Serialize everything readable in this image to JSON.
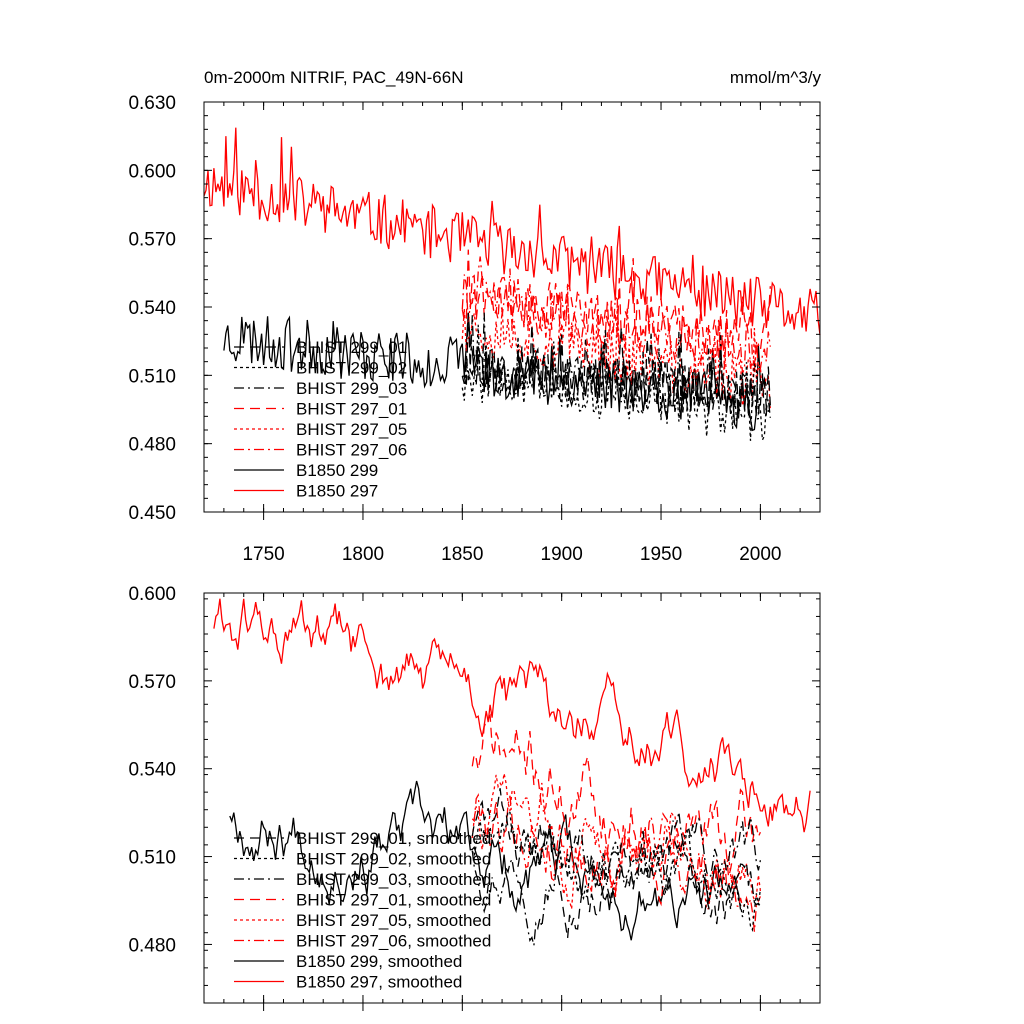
{
  "chart_data": [
    {
      "type": "line",
      "title": "0m-2000m NITRIF, PAC_49N-66N",
      "units": "mmol/m^3/y",
      "xlim": [
        1720,
        2030
      ],
      "ylim": [
        0.45,
        0.63
      ],
      "xticks": [
        1750,
        1800,
        1850,
        1900,
        1950,
        2000
      ],
      "yticks": [
        0.45,
        0.48,
        0.51,
        0.54,
        0.57,
        0.6,
        0.63
      ],
      "ytick_labels": [
        "0.450",
        "0.480",
        "0.510",
        "0.540",
        "0.570",
        "0.600",
        "0.630"
      ],
      "xtick_labels": [
        "1750",
        "1800",
        "1850",
        "1900",
        "1950",
        "2000"
      ],
      "legend": [
        "BHIST 299_01",
        "BHIST 299_02",
        "BHIST 299_03",
        "BHIST 297_01",
        "BHIST 297_05",
        "BHIST 297_06",
        "B1850 299",
        "B1850 297"
      ],
      "series": [
        {
          "name": "B1850 297",
          "color": "#ff0000",
          "dash": "solid",
          "years": [
            1720,
            2030
          ],
          "start": 0.595,
          "end": 0.535,
          "noise": 0.012,
          "seed": 11
        },
        {
          "name": "B1850 299",
          "color": "#000000",
          "dash": "solid",
          "years": [
            1730,
            2003
          ],
          "start": 0.527,
          "end": 0.497,
          "noise": 0.012,
          "seed": 23
        },
        {
          "name": "BHIST 297_01",
          "color": "#ff0000",
          "dash": "dash",
          "years": [
            1850,
            2005
          ],
          "start": 0.545,
          "end": 0.525,
          "noise": 0.012,
          "seed": 31
        },
        {
          "name": "BHIST 297_05",
          "color": "#ff0000",
          "dash": "dot",
          "years": [
            1850,
            2005
          ],
          "start": 0.532,
          "end": 0.505,
          "noise": 0.012,
          "seed": 37
        },
        {
          "name": "BHIST 297_06",
          "color": "#ff0000",
          "dash": "dashdot",
          "years": [
            1850,
            2005
          ],
          "start": 0.545,
          "end": 0.52,
          "noise": 0.012,
          "seed": 41
        },
        {
          "name": "BHIST 299_01",
          "color": "#000000",
          "dash": "dash",
          "years": [
            1850,
            2005
          ],
          "start": 0.515,
          "end": 0.5,
          "noise": 0.011,
          "seed": 43
        },
        {
          "name": "BHIST 299_02",
          "color": "#000000",
          "dash": "dot",
          "years": [
            1850,
            2005
          ],
          "start": 0.51,
          "end": 0.49,
          "noise": 0.011,
          "seed": 47
        },
        {
          "name": "BHIST 299_03",
          "color": "#000000",
          "dash": "dashdot",
          "years": [
            1850,
            2005
          ],
          "start": 0.515,
          "end": 0.5,
          "noise": 0.011,
          "seed": 53
        }
      ]
    },
    {
      "type": "line",
      "title": "",
      "xlim": [
        1720,
        2030
      ],
      "ylim": [
        0.46,
        0.6
      ],
      "xticks": [
        1750,
        1800,
        1850,
        1900,
        1950,
        2000
      ],
      "yticks": [
        0.48,
        0.51,
        0.54,
        0.57,
        0.6
      ],
      "ytick_labels": [
        "0.480",
        "0.510",
        "0.540",
        "0.570",
        "0.600"
      ],
      "legend": [
        "BHIST 299_01, smoothed",
        "BHIST 299_02, smoothed",
        "BHIST 299_03, smoothed",
        "BHIST 297_01, smoothed",
        "BHIST 297_05, smoothed",
        "BHIST 297_06, smoothed",
        "B1850 299, smoothed",
        "B1850 297, smoothed"
      ],
      "series": [
        {
          "name": "B1850 297, smoothed",
          "color": "#ff0000",
          "dash": "solid",
          "years": [
            1725,
            2025
          ],
          "start": 0.591,
          "end": 0.53,
          "noise": 0.006,
          "seed": 61
        },
        {
          "name": "B1850 299, smoothed",
          "color": "#000000",
          "dash": "solid",
          "years": [
            1733,
            1990
          ],
          "start": 0.527,
          "end": 0.49,
          "noise": 0.006,
          "seed": 67
        },
        {
          "name": "BHIST 297_01, smoothed",
          "color": "#ff0000",
          "dash": "dash",
          "years": [
            1855,
            2000
          ],
          "start": 0.545,
          "end": 0.51,
          "noise": 0.008,
          "seed": 71
        },
        {
          "name": "BHIST 297_05, smoothed",
          "color": "#ff0000",
          "dash": "dot",
          "years": [
            1855,
            2000
          ],
          "start": 0.52,
          "end": 0.51,
          "noise": 0.007,
          "seed": 73
        },
        {
          "name": "BHIST 297_06, smoothed",
          "color": "#ff0000",
          "dash": "dashdot",
          "years": [
            1855,
            2000
          ],
          "start": 0.527,
          "end": 0.508,
          "noise": 0.008,
          "seed": 79
        },
        {
          "name": "BHIST 299_01, smoothed",
          "color": "#000000",
          "dash": "dash",
          "years": [
            1855,
            2000
          ],
          "start": 0.52,
          "end": 0.49,
          "noise": 0.006,
          "seed": 83
        },
        {
          "name": "BHIST 299_02, smoothed",
          "color": "#000000",
          "dash": "dot",
          "years": [
            1855,
            2000
          ],
          "start": 0.515,
          "end": 0.5,
          "noise": 0.006,
          "seed": 89
        },
        {
          "name": "BHIST 299_03, smoothed",
          "color": "#000000",
          "dash": "dashdot",
          "years": [
            1855,
            2000
          ],
          "start": 0.515,
          "end": 0.505,
          "noise": 0.006,
          "seed": 97
        }
      ]
    }
  ]
}
